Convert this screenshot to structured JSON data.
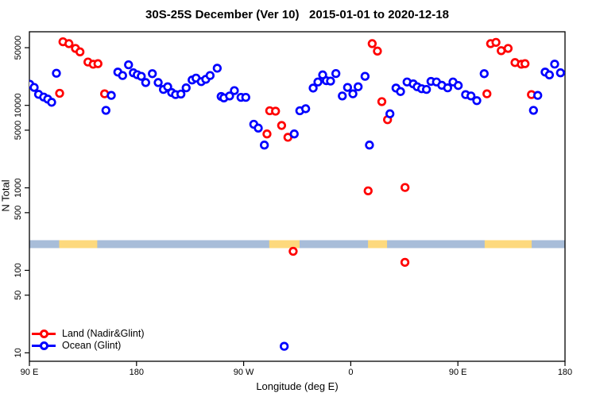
{
  "header": {
    "title": "30S-25S December (Ver 10)   2015-01-01 to 2020-12-18"
  },
  "chart_data": {
    "type": "scatter",
    "title": "30S-25S December (Ver 10)   2015-01-01 to 2020-12-18",
    "xlabel": "Longitude (deg E)",
    "ylabel": "N Total",
    "x_axis": {
      "description": "Longitude in deg E, wrapping eastward from 90E through 180, 90W, 0, 90E to 180",
      "range": [
        90,
        540
      ],
      "ticks": [
        {
          "value": 90,
          "label": "90 E"
        },
        {
          "value": 180,
          "label": "180"
        },
        {
          "value": 270,
          "label": "90 W"
        },
        {
          "value": 360,
          "label": "0"
        },
        {
          "value": 450,
          "label": "90 E"
        },
        {
          "value": 540,
          "label": "180"
        }
      ]
    },
    "y_axis": {
      "scale": "log10",
      "range": [
        7.9,
        78000
      ],
      "ticks": [
        {
          "value": 50000,
          "label": "50000"
        },
        {
          "value": 10000,
          "label": "10000"
        },
        {
          "value": 5000,
          "label": "5000"
        },
        {
          "value": 1000,
          "label": "1000"
        },
        {
          "value": 500,
          "label": "500"
        },
        {
          "value": 100,
          "label": "100"
        },
        {
          "value": 50,
          "label": "50"
        },
        {
          "value": 10,
          "label": "10"
        }
      ]
    },
    "grid": false,
    "series": [
      {
        "name": "Land (Nadir&Glint)",
        "color": "#ff0000",
        "marker": "open-circle",
        "points": [
          [
            115.4,
            14000
          ],
          [
            118.2,
            59000
          ],
          [
            123.2,
            56000
          ],
          [
            128.7,
            49000
          ],
          [
            132.5,
            44500
          ],
          [
            139.2,
            33500
          ],
          [
            143.6,
            31500
          ],
          [
            147.6,
            32000
          ],
          [
            153.2,
            13800
          ],
          [
            289.6,
            4500
          ],
          [
            291.9,
            8600
          ],
          [
            296.8,
            8500
          ],
          [
            301.9,
            5700
          ],
          [
            307.2,
            4100
          ],
          [
            311.6,
            170
          ],
          [
            374.6,
            920
          ],
          [
            378.0,
            56000
          ],
          [
            382.4,
            45500
          ],
          [
            386.1,
            11100
          ],
          [
            390.9,
            6700
          ],
          [
            405.5,
            125
          ],
          [
            405.6,
            1010
          ],
          [
            474.4,
            13800
          ],
          [
            477.5,
            56000
          ],
          [
            482.0,
            58000
          ],
          [
            486.4,
            46000
          ],
          [
            492.2,
            49000
          ],
          [
            498.0,
            33000
          ],
          [
            503.3,
            31500
          ],
          [
            506.4,
            32000
          ],
          [
            511.8,
            13500
          ]
        ]
      },
      {
        "name": "Ocean (Glint)",
        "color": "#0000ff",
        "marker": "open-circle",
        "points": [
          [
            90.3,
            18000
          ],
          [
            94.0,
            16500
          ],
          [
            97.7,
            13600
          ],
          [
            102.0,
            12600
          ],
          [
            105.4,
            11900
          ],
          [
            108.7,
            10900
          ],
          [
            112.7,
            24500
          ],
          [
            154.3,
            8700
          ],
          [
            158.8,
            13200
          ],
          [
            164.3,
            25300
          ],
          [
            168.3,
            23000
          ],
          [
            173.3,
            31000
          ],
          [
            177.3,
            24800
          ],
          [
            180.6,
            23500
          ],
          [
            184.0,
            22500
          ],
          [
            187.7,
            18900
          ],
          [
            193.3,
            24200
          ],
          [
            198.2,
            18900
          ],
          [
            202.6,
            15600
          ],
          [
            206.2,
            16800
          ],
          [
            209.5,
            14300
          ],
          [
            212.8,
            13500
          ],
          [
            217.3,
            13700
          ],
          [
            221.7,
            16300
          ],
          [
            226.7,
            20300
          ],
          [
            230.0,
            21400
          ],
          [
            234.4,
            19400
          ],
          [
            238.2,
            20700
          ],
          [
            241.8,
            23000
          ],
          [
            247.8,
            28200
          ],
          [
            251.1,
            12800
          ],
          [
            253.4,
            12300
          ],
          [
            258.2,
            13000
          ],
          [
            262.2,
            15100
          ],
          [
            267.8,
            12500
          ],
          [
            271.8,
            12500
          ],
          [
            278.5,
            5900
          ],
          [
            282.3,
            5300
          ],
          [
            287.4,
            3300
          ],
          [
            304.1,
            12
          ],
          [
            312.5,
            4500
          ],
          [
            317.2,
            8600
          ],
          [
            322.1,
            9100
          ],
          [
            328.4,
            16200
          ],
          [
            332.4,
            19200
          ],
          [
            336.4,
            23400
          ],
          [
            339.5,
            19900
          ],
          [
            343.0,
            19700
          ],
          [
            347.5,
            24300
          ],
          [
            352.9,
            13000
          ],
          [
            357.3,
            16500
          ],
          [
            361.8,
            13800
          ],
          [
            366.2,
            16800
          ],
          [
            372.0,
            22500
          ],
          [
            375.7,
            3300
          ],
          [
            392.9,
            7900
          ],
          [
            398.0,
            16200
          ],
          [
            401.8,
            14700
          ],
          [
            407.3,
            19200
          ],
          [
            412.5,
            18200
          ],
          [
            415.8,
            16800
          ],
          [
            419.6,
            15900
          ],
          [
            423.6,
            15600
          ],
          [
            427.4,
            19500
          ],
          [
            432.0,
            19200
          ],
          [
            436.5,
            17500
          ],
          [
            441.4,
            16300
          ],
          [
            445.9,
            19200
          ],
          [
            450.3,
            17400
          ],
          [
            456.5,
            13500
          ],
          [
            461.0,
            13000
          ],
          [
            465.9,
            11400
          ],
          [
            472.1,
            24200
          ],
          [
            513.5,
            8700
          ],
          [
            517.1,
            13200
          ],
          [
            523.3,
            25300
          ],
          [
            526.9,
            23400
          ],
          [
            531.3,
            31600
          ],
          [
            536.2,
            24800
          ]
        ]
      }
    ],
    "land_ocean_strip": {
      "description": "horizontal map band showing land vs ocean along the 30S-25S latitude belt",
      "ocean_color": "#a8bdd9",
      "land_color": "#fdd97d",
      "y_value_range": [
        186,
        232
      ],
      "full_range_deg": [
        90,
        540
      ],
      "land_segments_deg": [
        [
          115,
          147
        ],
        [
          291.5,
          317
        ],
        [
          374.5,
          390.5
        ],
        [
          472.5,
          512
        ]
      ]
    },
    "legend": {
      "position": "bottom-left",
      "items": [
        {
          "label": "Land (Nadir&Glint)",
          "color": "#ff0000"
        },
        {
          "label": "Ocean (Glint)",
          "color": "#0000ff"
        }
      ]
    }
  }
}
